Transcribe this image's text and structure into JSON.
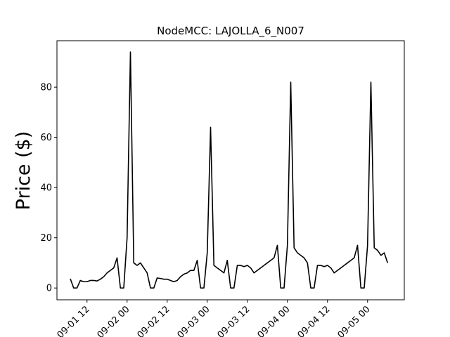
{
  "chart_data": {
    "type": "line",
    "title": "NodeMCC: LAJOLLA_6_N007",
    "y_label": "Price ($)",
    "x": [
      "09-01 07",
      "09-01 08",
      "09-01 09",
      "09-01 10",
      "09-01 11",
      "09-01 12",
      "09-01 13",
      "09-01 14",
      "09-01 15",
      "09-01 16",
      "09-01 17",
      "09-01 18",
      "09-01 19",
      "09-01 20",
      "09-01 21",
      "09-01 22",
      "09-01 23",
      "09-02 00",
      "09-02 01",
      "09-02 02",
      "09-02 03",
      "09-02 04",
      "09-02 05",
      "09-02 06",
      "09-02 07",
      "09-02 08",
      "09-02 09",
      "09-02 10",
      "09-02 11",
      "09-02 12",
      "09-02 13",
      "09-02 14",
      "09-02 15",
      "09-02 16",
      "09-02 17",
      "09-02 18",
      "09-02 19",
      "09-02 20",
      "09-02 21",
      "09-02 22",
      "09-02 23",
      "09-03 00",
      "09-03 01",
      "09-03 02",
      "09-03 03",
      "09-03 04",
      "09-03 05",
      "09-03 06",
      "09-03 07",
      "09-03 08",
      "09-03 09",
      "09-03 10",
      "09-03 11",
      "09-03 12",
      "09-03 13",
      "09-03 14",
      "09-03 15",
      "09-03 16",
      "09-03 17",
      "09-03 18",
      "09-03 19",
      "09-03 20",
      "09-03 21",
      "09-03 22",
      "09-03 23",
      "09-04 00",
      "09-04 01",
      "09-04 02",
      "09-04 03",
      "09-04 04",
      "09-04 05",
      "09-04 06",
      "09-04 07",
      "09-04 08",
      "09-04 09",
      "09-04 10",
      "09-04 11",
      "09-04 12",
      "09-04 13",
      "09-04 14",
      "09-04 15",
      "09-04 16",
      "09-04 17",
      "09-04 18",
      "09-04 19",
      "09-04 20",
      "09-04 21",
      "09-04 22",
      "09-04 23",
      "09-05 00",
      "09-05 01",
      "09-05 02",
      "09-05 03",
      "09-05 04",
      "09-05 05",
      "09-05 06"
    ],
    "series": [
      {
        "color": "#000000",
        "values": [
          3.7,
          0,
          0,
          3,
          2.5,
          2.5,
          3,
          3,
          2.8,
          3.5,
          4.5,
          6,
          7,
          8,
          12,
          0,
          0,
          20,
          94,
          10,
          9,
          10,
          8,
          6,
          0,
          0,
          4,
          3.8,
          3.5,
          3.5,
          3,
          2.5,
          3,
          4.5,
          5.5,
          6,
          7,
          7,
          11,
          0,
          0,
          14,
          64,
          9,
          8,
          7,
          6,
          11,
          0,
          0,
          9,
          9,
          8.5,
          9,
          8,
          6,
          7,
          8,
          9,
          10,
          11,
          12,
          17,
          0,
          0,
          17,
          82,
          16,
          14,
          13,
          12,
          10,
          0,
          0,
          9,
          9,
          8.5,
          9,
          8,
          6,
          7,
          8,
          9,
          10,
          11,
          12,
          17,
          0,
          0,
          17,
          82,
          16,
          15,
          13,
          14,
          10
        ]
      }
    ],
    "xlim": [
      "09-01 03",
      "09-05 11"
    ],
    "xticks": [
      "09-01 12",
      "09-02 00",
      "09-02 12",
      "09-03 00",
      "09-03 12",
      "09-04 00",
      "09-04 12",
      "09-05 00"
    ],
    "ylim": [
      -4.7,
      98.5
    ],
    "yticks": [
      0,
      20,
      40,
      60,
      80
    ]
  }
}
